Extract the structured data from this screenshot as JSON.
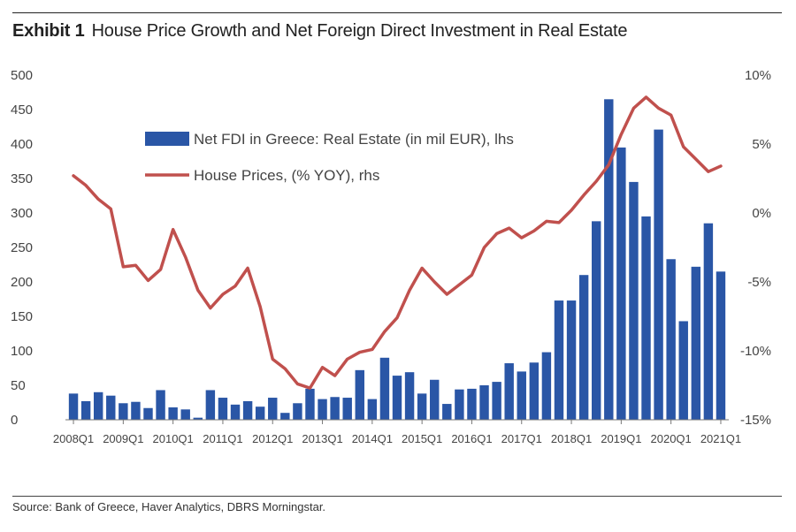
{
  "header": {
    "exhibit_label": "Exhibit 1",
    "title": "House Price Growth and Net Foreign Direct Investment in Real Estate"
  },
  "footer": {
    "source": "Source: Bank of Greece, Haver Analytics, DBRS Morningstar."
  },
  "colors": {
    "bars": "#2a56a6",
    "line": "#c0504d",
    "rule": "#222222"
  },
  "chart_data": {
    "type": "bar",
    "title": "House Price Growth and Net Foreign Direct Investment in Real Estate",
    "x_tick_labels": [
      "2008Q1",
      "2009Q1",
      "2010Q1",
      "2011Q1",
      "2012Q1",
      "2013Q1",
      "2014Q1",
      "2015Q1",
      "2016Q1",
      "2017Q1",
      "2018Q1",
      "2019Q1",
      "2020Q1",
      "2021Q1"
    ],
    "y_left": {
      "range": [
        0,
        500
      ],
      "ticks": [
        "500",
        "450",
        "400",
        "350",
        "300",
        "250",
        "200",
        "150",
        "100",
        "50",
        "0"
      ]
    },
    "y_right": {
      "range": [
        -15,
        10
      ],
      "ticks": [
        "10%",
        "5%",
        "0%",
        "-5%",
        "-10%",
        "-15%"
      ]
    },
    "legend_position": "top-left inside plot",
    "series": [
      {
        "name": "Net FDI in Greece: Real Estate (in mil EUR), lhs",
        "type": "bar",
        "axis": "left",
        "values": [
          38,
          27,
          40,
          35,
          24,
          26,
          17,
          43,
          18,
          15,
          3,
          43,
          32,
          22,
          27,
          19,
          32,
          10,
          24,
          45,
          30,
          33,
          32,
          72,
          30,
          90,
          64,
          69,
          38,
          58,
          23,
          44,
          45,
          50,
          55,
          82,
          70,
          83,
          98,
          173,
          173,
          210,
          288,
          465,
          395,
          345,
          295,
          421,
          233,
          143,
          222,
          285,
          215
        ]
      },
      {
        "name": "House Prices, (% YOY), rhs",
        "type": "line",
        "axis": "right",
        "values": [
          2.7,
          2.0,
          1.0,
          0.3,
          -3.9,
          -3.8,
          -4.9,
          -4.1,
          -1.2,
          -3.2,
          -5.6,
          -6.9,
          -5.9,
          -5.3,
          -4.0,
          -6.8,
          -10.6,
          -11.3,
          -12.4,
          -12.7,
          -11.2,
          -11.8,
          -10.6,
          -10.1,
          -9.9,
          -8.6,
          -7.6,
          -5.6,
          -4.0,
          -5.0,
          -5.9,
          -5.2,
          -4.5,
          -2.5,
          -1.5,
          -1.1,
          -1.8,
          -1.3,
          -0.6,
          -0.7,
          0.2,
          1.3,
          2.3,
          3.5,
          5.7,
          7.6,
          8.4,
          7.6,
          7.1,
          4.8,
          3.9,
          3.0,
          3.4
        ]
      }
    ]
  }
}
